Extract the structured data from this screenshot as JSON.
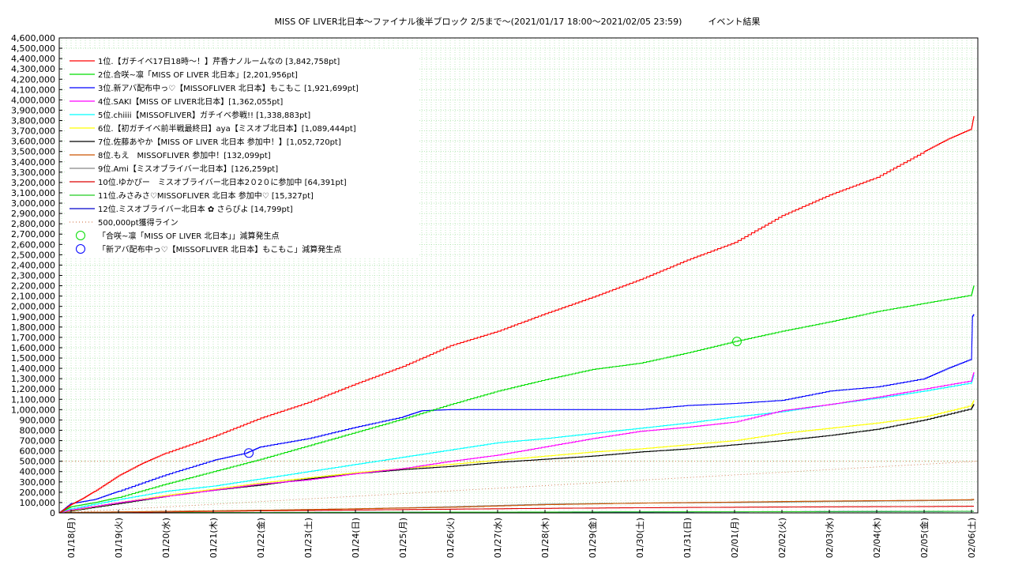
{
  "chart_data": {
    "type": "line",
    "title": "MISS OF LIVER北日本～ファイナル後半ブロック 2/5まで～(2021/01/17 18:00～2021/02/05 23:59)　　　イベント結果",
    "xlabel": "",
    "ylabel": "",
    "ylim": [
      0,
      4600000
    ],
    "ytick_step": 100000,
    "x_categories": [
      "01/18(月)",
      "01/19(火)",
      "01/20(水)",
      "01/21(木)",
      "01/22(金)",
      "01/23(土)",
      "01/24(日)",
      "01/25(月)",
      "01/26(火)",
      "01/27(水)",
      "01/28(木)",
      "01/29(金)",
      "01/30(土)",
      "01/31(日)",
      "02/01(月)",
      "02/02(火)",
      "02/03(水)",
      "02/04(木)",
      "02/05(金)",
      "02/06(土)"
    ],
    "x_start": -0.25,
    "x_end": 19.05,
    "grid": true,
    "legend_position": "top-left",
    "series": [
      {
        "name": "1位.【ガチイベ17日18時～！】芹香ナノルームなの [3,842,758pt]",
        "color": "#ff0000",
        "x": [
          -0.25,
          0,
          0.25,
          0.5,
          1,
          1.5,
          2,
          3,
          4,
          5,
          6,
          7,
          8,
          9,
          10,
          11,
          12,
          13,
          14,
          15,
          16,
          17,
          18,
          18.5,
          19,
          19.05
        ],
        "y": [
          0,
          80000,
          140000,
          210000,
          360000,
          480000,
          580000,
          740000,
          920000,
          1070000,
          1250000,
          1420000,
          1620000,
          1760000,
          1930000,
          2090000,
          2260000,
          2450000,
          2620000,
          2880000,
          3080000,
          3250000,
          3500000,
          3620000,
          3720000,
          3842758
        ]
      },
      {
        "name": "2位.合咲~凛「MISS OF LIVER 北日本」[2,201,956pt]",
        "color": "#00dd00",
        "x": [
          -0.25,
          0,
          0.5,
          1,
          2,
          3,
          4,
          5,
          6,
          7,
          8,
          9,
          10,
          11,
          12,
          13,
          14,
          15,
          16,
          17,
          18,
          19,
          19.05
        ],
        "y": [
          0,
          60000,
          100000,
          150000,
          280000,
          400000,
          520000,
          650000,
          780000,
          910000,
          1050000,
          1180000,
          1290000,
          1390000,
          1450000,
          1550000,
          1660000,
          1760000,
          1850000,
          1950000,
          2030000,
          2110000,
          2201956
        ]
      },
      {
        "name": "3位.新アバ配布中っ♡【MISSOFLIVER 北日本】もこもこ [1,921,699pt]",
        "color": "#0000ff",
        "x": [
          -0.25,
          0,
          0.5,
          1,
          2,
          3,
          3.7,
          4,
          5,
          6,
          7,
          7.4,
          8,
          9,
          10,
          11,
          12,
          13,
          14,
          15,
          16,
          17,
          18,
          18.5,
          19,
          19.02,
          19.05
        ],
        "y": [
          0,
          90000,
          130000,
          210000,
          370000,
          510000,
          580000,
          640000,
          720000,
          830000,
          930000,
          990000,
          1000000,
          1000000,
          1000000,
          1000000,
          1000000,
          1040000,
          1060000,
          1090000,
          1180000,
          1220000,
          1300000,
          1400000,
          1490000,
          1900000,
          1921699
        ]
      },
      {
        "name": "4位.SAKI【MISS OF LIVER北日本】[1,362,055pt]",
        "color": "#ff00ff",
        "x": [
          -0.25,
          0,
          1,
          2,
          3,
          4,
          5,
          6,
          7,
          8,
          9,
          10,
          11,
          12,
          13,
          14,
          15,
          16,
          17,
          18,
          19,
          19.05
        ],
        "y": [
          0,
          30000,
          100000,
          160000,
          220000,
          280000,
          320000,
          380000,
          430000,
          500000,
          560000,
          640000,
          720000,
          790000,
          830000,
          880000,
          990000,
          1050000,
          1120000,
          1200000,
          1280000,
          1362055
        ]
      },
      {
        "name": "5位.chiiii【MISSOFLIVER】ガチイベ参戦!! [1,338,883pt]",
        "color": "#00ffff",
        "x": [
          -0.25,
          0,
          1,
          2,
          3,
          4,
          5,
          6,
          7,
          8,
          9,
          10,
          11,
          12,
          13,
          14,
          15,
          16,
          17,
          18,
          19,
          19.05
        ],
        "y": [
          0,
          40000,
          130000,
          210000,
          260000,
          330000,
          400000,
          470000,
          540000,
          610000,
          680000,
          720000,
          770000,
          820000,
          870000,
          930000,
          980000,
          1050000,
          1110000,
          1180000,
          1260000,
          1338883
        ]
      },
      {
        "name": "6位.【初ガチイベ前半戦最終日】aya【ミスオブ北日本】[1,089,444pt]",
        "color": "#ffff00",
        "x": [
          -0.25,
          0,
          1,
          2,
          3,
          4,
          5,
          6,
          7,
          8,
          9,
          10,
          11,
          12,
          13,
          14,
          15,
          16,
          17,
          18,
          19,
          19.05
        ],
        "y": [
          0,
          25000,
          100000,
          170000,
          230000,
          290000,
          340000,
          390000,
          430000,
          470000,
          510000,
          550000,
          590000,
          620000,
          660000,
          700000,
          770000,
          820000,
          870000,
          930000,
          1040000,
          1089444
        ]
      },
      {
        "name": "7位.佐藤あやか【MISS OF LIVER 北日本 参加中！】[1,052,720pt]",
        "color": "#000000",
        "x": [
          -0.25,
          0,
          1,
          2,
          3,
          4,
          5,
          6,
          7,
          8,
          9,
          10,
          11,
          12,
          13,
          14,
          15,
          16,
          17,
          18,
          19,
          19.05
        ],
        "y": [
          0,
          20000,
          90000,
          160000,
          220000,
          270000,
          330000,
          380000,
          420000,
          450000,
          490000,
          520000,
          550000,
          590000,
          620000,
          660000,
          700000,
          750000,
          810000,
          900000,
          1010000,
          1052720
        ]
      },
      {
        "name": "8位.もえ　MISSOFLIVER 参加中！[132,099pt]",
        "color": "#cc5500",
        "x": [
          -0.25,
          0,
          2,
          4,
          6,
          8,
          10,
          12,
          14,
          16,
          18,
          19,
          19.05
        ],
        "y": [
          0,
          5000,
          15000,
          25000,
          40000,
          55000,
          80000,
          95000,
          105000,
          115000,
          122000,
          128000,
          132099
        ]
      },
      {
        "name": "9位.Ami【ミスオブライバー北日本】[126,259pt]",
        "color": "#888888",
        "x": [
          -0.25,
          0,
          2,
          4,
          6,
          8,
          10,
          12,
          14,
          16,
          18,
          19,
          19.05
        ],
        "y": [
          0,
          4000,
          14000,
          26000,
          40000,
          60000,
          85000,
          95000,
          100000,
          110000,
          118000,
          124000,
          126259
        ]
      },
      {
        "name": "10位.ゆかぴー　ミスオブライバー北日本2０2０に参加中 [64,391pt]",
        "color": "#dd0000",
        "x": [
          -0.25,
          0,
          2,
          4,
          6,
          8,
          10,
          12,
          14,
          16,
          18,
          19.05
        ],
        "y": [
          0,
          3000,
          10000,
          20000,
          28000,
          36000,
          44000,
          50000,
          55000,
          59000,
          62000,
          64391
        ]
      },
      {
        "name": "11位.みさみさ♡MISSOFLIVER 北日本 参加中♡ [15,327pt]",
        "color": "#22cc22",
        "x": [
          -0.25,
          0,
          4,
          8,
          12,
          16,
          19.05
        ],
        "y": [
          0,
          1000,
          4000,
          7000,
          10000,
          13000,
          15327
        ]
      },
      {
        "name": "12位.ミスオブライバー北日本 ✿ さらぴよ [14,799pt]",
        "color": "#0000cc",
        "x": [
          -0.25,
          0,
          4,
          8,
          12,
          16,
          19.05
        ],
        "y": [
          0,
          1000,
          3500,
          6500,
          9500,
          12500,
          14799
        ]
      }
    ],
    "target_line": {
      "name": "500,000pt獲得ライン",
      "color": "#cc6633",
      "value": 500000
    },
    "markers": [
      {
        "name": "「合咲~凛「MISS OF LIVER 北日本」」減算発生点",
        "color": "#00dd00",
        "x": 14.05,
        "y": 1660000
      },
      {
        "name": "「新アバ配布中っ♡【MISSOFLIVER 北日本】もこもこ」減算発生点",
        "color": "#0000ff",
        "x": 3.75,
        "y": 580000
      }
    ]
  }
}
